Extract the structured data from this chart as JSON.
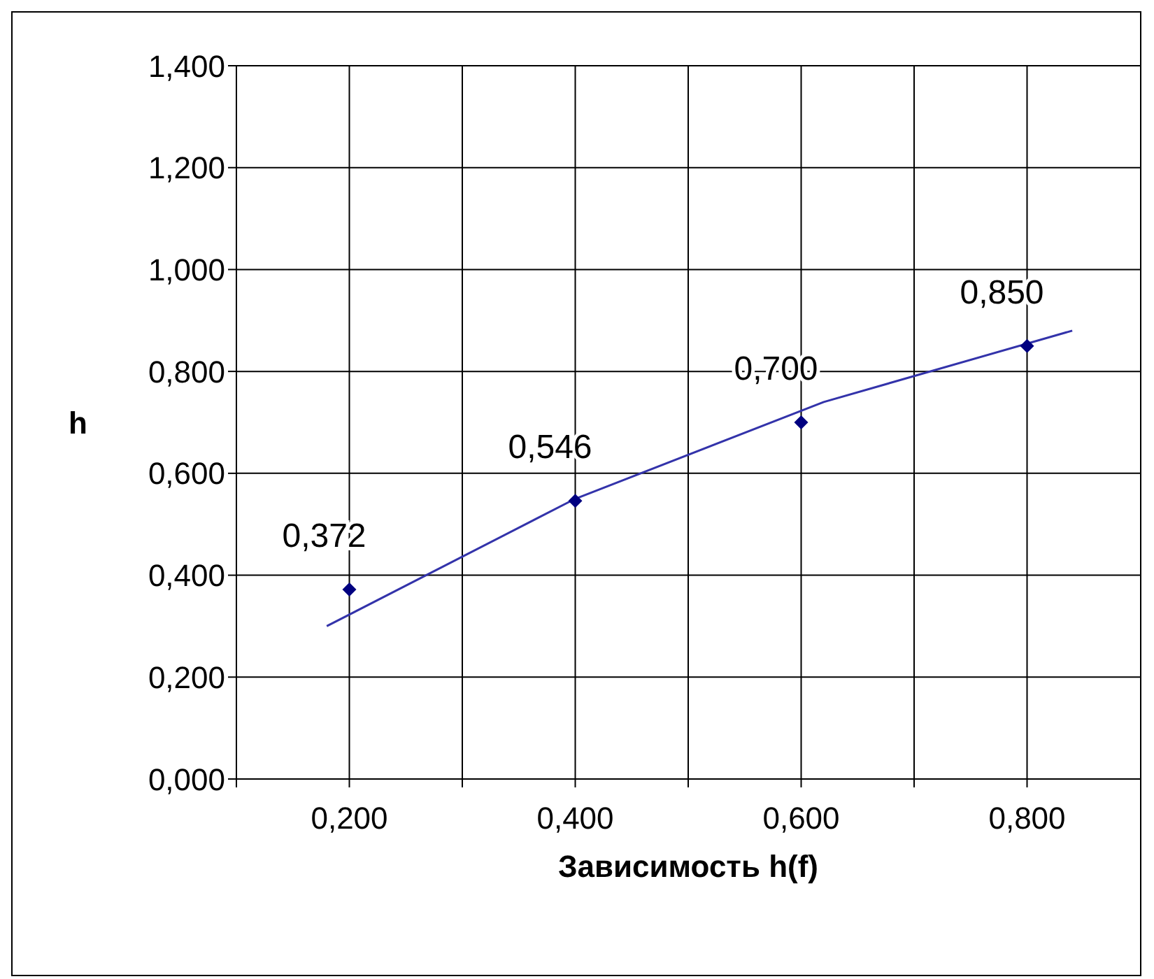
{
  "chart_data": {
    "type": "scatter",
    "xlabel": "Зависимость h(f)",
    "ylabel": "h",
    "marker": "diamond",
    "grid": true,
    "xlim": [
      0.1,
      0.9
    ],
    "xticks": [
      {
        "value": 0.1,
        "label": null
      },
      {
        "value": 0.2,
        "label": "0,200"
      },
      {
        "value": 0.3,
        "label": null
      },
      {
        "value": 0.4,
        "label": "0,400"
      },
      {
        "value": 0.5,
        "label": null
      },
      {
        "value": 0.6,
        "label": "0,600"
      },
      {
        "value": 0.7,
        "label": null
      },
      {
        "value": 0.8,
        "label": "0,800"
      }
    ],
    "ylim": [
      0,
      1.4
    ],
    "yticks": [
      {
        "value": 0,
        "label": "0,000"
      },
      {
        "value": 0.2,
        "label": "0,200"
      },
      {
        "value": 0.4,
        "label": "0,400"
      },
      {
        "value": 0.6,
        "label": "0,600"
      },
      {
        "value": 0.8,
        "label": "0,800"
      },
      {
        "value": 1,
        "label": "1,000"
      },
      {
        "value": 1.2,
        "label": "1,200"
      },
      {
        "value": 1.4,
        "label": "1,400"
      }
    ],
    "series": [
      {
        "type": "line",
        "marker": "none",
        "color": "#3333aa",
        "x": [
          0.18,
          0.4,
          0.62,
          0.84
        ],
        "values": [
          0.3,
          0.55,
          0.74,
          0.88
        ]
      },
      {
        "color": "#000080",
        "x": [
          0.2,
          0.4,
          0.6,
          0.8
        ],
        "values": [
          0.372,
          0.546,
          0.7,
          0.85
        ],
        "value_labels": [
          "0,372",
          "0,546",
          "0,700",
          "0,850"
        ]
      }
    ]
  }
}
